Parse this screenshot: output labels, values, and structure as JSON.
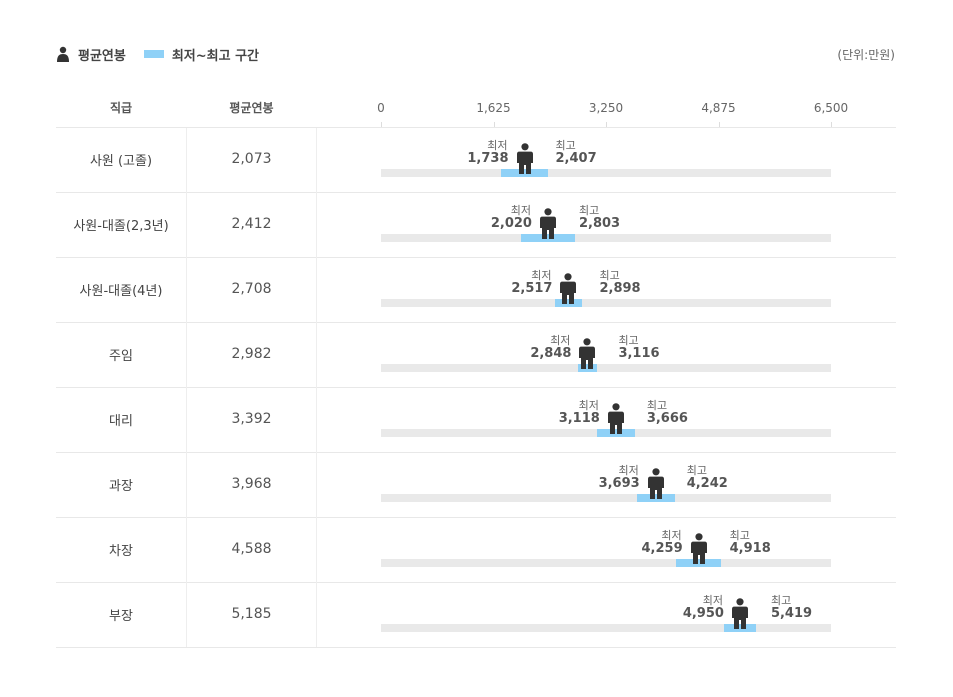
{
  "legend": {
    "avg_label": "평균연봉",
    "range_label": "최저~최고 구간",
    "unit": "(단위:만원)"
  },
  "headers": {
    "rank": "직급",
    "avg": "평균연봉"
  },
  "range_labels": {
    "min": "최저",
    "max": "최고"
  },
  "colors": {
    "range": "#8fd1f7",
    "track": "#e9e9e9",
    "figure": "#333333"
  },
  "chart_data": {
    "type": "range-bar",
    "axis": {
      "min": 0,
      "max": 6500,
      "ticks": [
        "0",
        "1,625",
        "3,250",
        "4,875",
        "6,500"
      ],
      "tick_values": [
        0,
        1625,
        3250,
        4875,
        6500
      ]
    },
    "categories": [
      "사원 (고졸)",
      "사원-대졸(2,3년)",
      "사원-대졸(4년)",
      "주임",
      "대리",
      "과장",
      "차장",
      "부장"
    ],
    "avg": [
      2073,
      2412,
      2708,
      2982,
      3392,
      3968,
      4588,
      5185
    ],
    "avg_text": [
      "2,073",
      "2,412",
      "2,708",
      "2,982",
      "3,392",
      "3,968",
      "4,588",
      "5,185"
    ],
    "min": [
      1738,
      2020,
      2517,
      2848,
      3118,
      3693,
      4259,
      4950
    ],
    "min_text": [
      "1,738",
      "2,020",
      "2,517",
      "2,848",
      "3,118",
      "3,693",
      "4,259",
      "4,950"
    ],
    "max": [
      2407,
      2803,
      2898,
      3116,
      3666,
      4242,
      4918,
      5419
    ],
    "max_text": [
      "2,407",
      "2,803",
      "2,898",
      "3,116",
      "3,666",
      "4,242",
      "4,918",
      "5,419"
    ]
  }
}
